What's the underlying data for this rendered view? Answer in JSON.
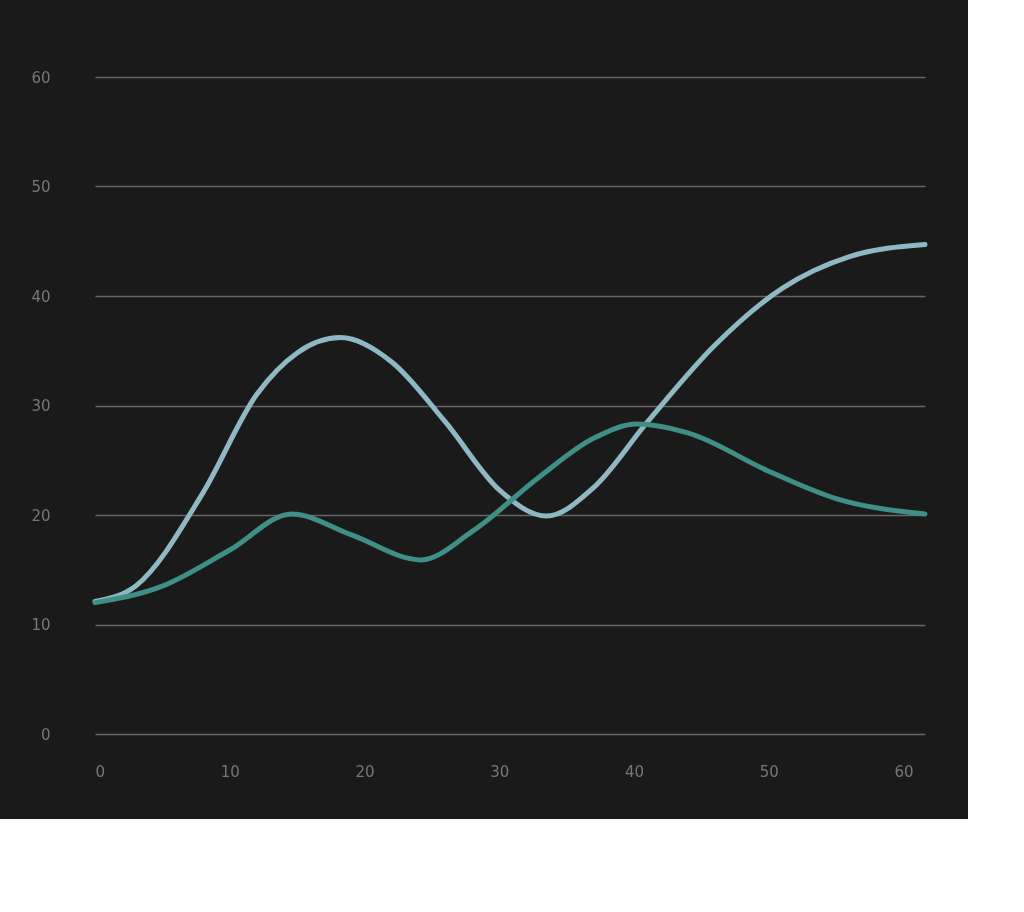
{
  "chart_data": {
    "type": "line",
    "series": [
      {
        "color": "#8fb8c4",
        "x": [
          0,
          3,
          8,
          12,
          15,
          18.2,
          22,
          26,
          30,
          33.5,
          37,
          41,
          46,
          51,
          56,
          61.6
        ],
        "values": [
          12.1,
          13.5,
          22,
          31,
          34.8,
          36.2,
          34,
          28.5,
          22.3,
          19.9,
          22.5,
          28.5,
          35.5,
          40.7,
          43.6,
          44.7
        ]
      },
      {
        "color": "#3f8f86",
        "x": [
          0,
          5,
          10,
          14.6,
          19,
          24.2,
          28,
          33,
          37,
          40.2,
          44,
          50,
          55,
          61.6
        ],
        "values": [
          12,
          13.5,
          16.8,
          20.1,
          18.2,
          15.9,
          18.5,
          23.5,
          27,
          28.3,
          27.5,
          24,
          21.5,
          20.1
        ]
      }
    ],
    "xlim": [
      0,
      61.6
    ],
    "xticks": [
      0,
      10,
      20,
      30,
      40,
      50,
      60
    ],
    "ylim": [
      0,
      60
    ],
    "yticks": [
      0,
      10,
      20,
      30,
      40,
      50,
      60
    ],
    "grid": "y",
    "legend": false,
    "marker": "none",
    "line_style": "solid"
  }
}
